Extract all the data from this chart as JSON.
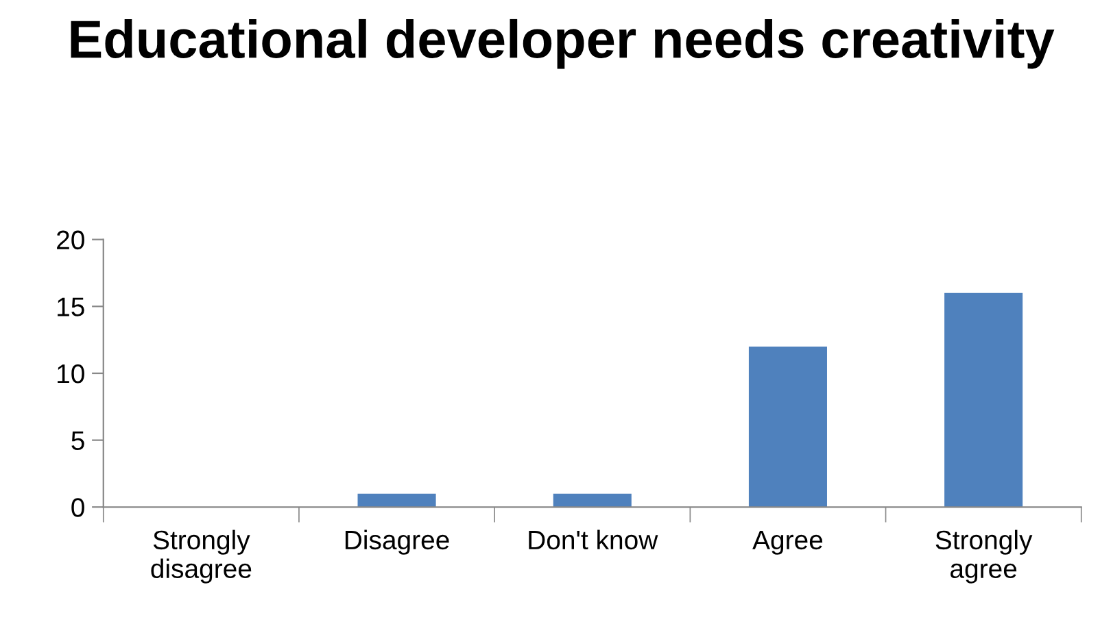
{
  "chart_data": {
    "type": "bar",
    "title": "Educational developer needs creativity",
    "categories": [
      "Strongly\ndisagree",
      "Disagree",
      "Don't know",
      "Agree",
      "Strongly\nagree"
    ],
    "values": [
      0,
      1,
      1,
      12,
      16
    ],
    "color": "#4f81bd",
    "ylim": [
      0,
      20
    ],
    "yticks": [
      0,
      5,
      10,
      15,
      20
    ],
    "grid": false,
    "legend": false
  }
}
